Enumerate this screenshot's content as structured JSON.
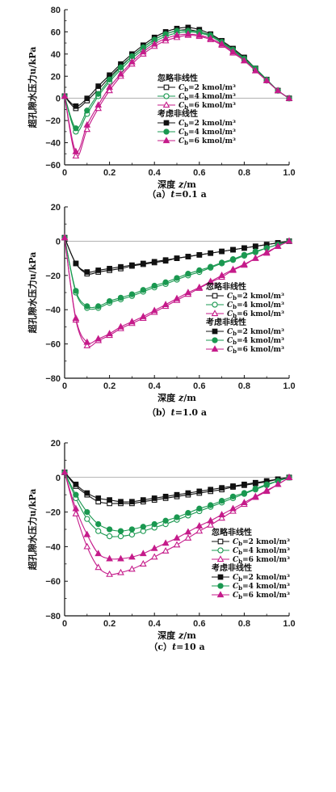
{
  "colors": {
    "c2": "#111111",
    "c4": "#1a9850",
    "c6": "#c51b8a"
  },
  "legend": {
    "group_ignore": "忽略非线性",
    "group_consider": "考虑非线性",
    "c_symbol": "C",
    "c_sub": "b",
    "entries": [
      "=2 kmol/m³",
      "=4 kmol/m³",
      "=6 kmol/m³"
    ]
  },
  "axes": {
    "xlabel_prefix": "深度 ",
    "xlabel_var": "z",
    "xlabel_unit": "/m",
    "ylabel": "超孔隙水压力u/kPa"
  },
  "chart_data": [
    {
      "type": "line",
      "caption": "（a）t=0.1 a",
      "caption_prefix": "（a）",
      "caption_var": "t",
      "caption_rest": "=0.1 a",
      "xlim": [
        0,
        1
      ],
      "ylim": [
        -60,
        80
      ],
      "xticks": [
        "0",
        "0.2",
        "0.4",
        "0.6",
        "0.8",
        "1.0"
      ],
      "yticks": [
        "−60",
        "−40",
        "−20",
        "0",
        "20",
        "40",
        "60",
        "80"
      ],
      "x": [
        0,
        0.05,
        0.1,
        0.15,
        0.2,
        0.25,
        0.3,
        0.35,
        0.4,
        0.45,
        0.5,
        0.55,
        0.6,
        0.65,
        0.7,
        0.75,
        0.8,
        0.85,
        0.9,
        0.95,
        1.0
      ],
      "series": [
        {
          "name": "=2 kmol/m³",
          "group": "ignore",
          "values": [
            2,
            -9,
            -2,
            8,
            19,
            29,
            38,
            46,
            53,
            58,
            61,
            62,
            60,
            57,
            51,
            44,
            36,
            27,
            17,
            7,
            0
          ]
        },
        {
          "name": "=4 kmol/m³",
          "group": "ignore",
          "values": [
            2,
            -30,
            -14,
            2,
            15,
            26,
            36,
            44,
            51,
            56,
            59,
            60,
            59,
            56,
            50,
            43,
            35,
            26,
            16,
            7,
            0
          ]
        },
        {
          "name": "=6 kmol/m³",
          "group": "ignore",
          "values": [
            2,
            -52,
            -28,
            -9,
            7,
            20,
            31,
            40,
            47,
            52,
            55,
            57,
            56,
            53,
            48,
            41,
            34,
            25,
            16,
            7,
            0
          ]
        },
        {
          "name": "=2 kmol/m³",
          "group": "consider",
          "values": [
            2,
            -7,
            0,
            11,
            21,
            31,
            40,
            48,
            55,
            60,
            63,
            64,
            62,
            58,
            52,
            45,
            37,
            27,
            17,
            7,
            0
          ]
        },
        {
          "name": "=4 kmol/m³",
          "group": "consider",
          "values": [
            2,
            -27,
            -11,
            4,
            17,
            28,
            38,
            46,
            53,
            58,
            61,
            61,
            60,
            57,
            51,
            44,
            36,
            27,
            17,
            7,
            0
          ]
        },
        {
          "name": "=6 kmol/m³",
          "group": "consider",
          "values": [
            2,
            -48,
            -24,
            -6,
            10,
            22,
            33,
            42,
            49,
            54,
            57,
            58,
            57,
            54,
            49,
            42,
            34,
            25,
            16,
            7,
            0
          ]
        }
      ]
    },
    {
      "type": "line",
      "caption": "（b）t=1.0 a",
      "caption_prefix": "（b）",
      "caption_var": "t",
      "caption_rest": "=1.0 a",
      "xlim": [
        0,
        1
      ],
      "ylim": [
        -80,
        20
      ],
      "xticks": [
        "0",
        "0.2",
        "0.4",
        "0.6",
        "0.8",
        "1.0"
      ],
      "yticks": [
        "−80",
        "−60",
        "−40",
        "−20",
        "0",
        "20"
      ],
      "x": [
        0,
        0.05,
        0.1,
        0.15,
        0.2,
        0.25,
        0.3,
        0.35,
        0.4,
        0.45,
        0.5,
        0.55,
        0.6,
        0.65,
        0.7,
        0.75,
        0.8,
        0.85,
        0.9,
        0.95,
        1.0
      ],
      "series": [
        {
          "name": "=2 kmol/m³",
          "group": "ignore",
          "values": [
            2,
            -13,
            -19,
            -18,
            -17,
            -16,
            -14.5,
            -13.5,
            -12.5,
            -11.5,
            -10,
            -9,
            -8,
            -7,
            -6,
            -5,
            -4,
            -3,
            -2,
            -1,
            0
          ]
        },
        {
          "name": "=4 kmol/m³",
          "group": "ignore",
          "values": [
            2,
            -30,
            -39,
            -39,
            -36,
            -34,
            -32,
            -29.5,
            -27,
            -25,
            -22.5,
            -20,
            -18,
            -15.5,
            -13,
            -11,
            -8.5,
            -6.5,
            -4,
            -2,
            0
          ]
        },
        {
          "name": "=6 kmol/m³",
          "group": "ignore",
          "values": [
            2,
            -46,
            -61,
            -58,
            -55,
            -51,
            -48,
            -45,
            -41.5,
            -38,
            -34.5,
            -31,
            -27.5,
            -24,
            -21,
            -17,
            -14,
            -10,
            -7,
            -3,
            0
          ]
        },
        {
          "name": "=2 kmol/m³",
          "group": "consider",
          "values": [
            2,
            -13,
            -18,
            -17,
            -16,
            -15,
            -14,
            -13,
            -12,
            -11,
            -10,
            -9,
            -8,
            -7,
            -6,
            -5,
            -4,
            -3,
            -2,
            -1,
            0
          ]
        },
        {
          "name": "=4 kmol/m³",
          "group": "consider",
          "values": [
            2,
            -29,
            -38,
            -38,
            -35,
            -33,
            -31,
            -28.5,
            -26,
            -24,
            -21.5,
            -19,
            -17,
            -15,
            -12.5,
            -10.5,
            -8,
            -6,
            -4,
            -2,
            0
          ]
        },
        {
          "name": "=6 kmol/m³",
          "group": "consider",
          "values": [
            2,
            -45,
            -59,
            -57,
            -54,
            -50,
            -47,
            -44,
            -40.5,
            -37,
            -33.5,
            -30,
            -27,
            -23.5,
            -20,
            -16.5,
            -13.5,
            -10,
            -6.5,
            -3,
            0
          ]
        }
      ]
    },
    {
      "type": "line",
      "caption": "（c）t=10 a",
      "caption_prefix": "（c）",
      "caption_var": "t",
      "caption_rest": "=10 a",
      "xlim": [
        0,
        1
      ],
      "ylim": [
        -80,
        20
      ],
      "xticks": [
        "0",
        "0.2",
        "0.4",
        "0.6",
        "0.8",
        "1.0"
      ],
      "yticks": [
        "−80",
        "−60",
        "−40",
        "−20",
        "0",
        "20"
      ],
      "x": [
        0,
        0.05,
        0.1,
        0.15,
        0.2,
        0.25,
        0.3,
        0.35,
        0.4,
        0.45,
        0.5,
        0.55,
        0.6,
        0.65,
        0.7,
        0.75,
        0.8,
        0.85,
        0.9,
        0.95,
        1.0
      ],
      "series": [
        {
          "name": "=2 kmol/m³",
          "group": "ignore",
          "values": [
            3,
            -5,
            -10,
            -14,
            -15,
            -15,
            -15,
            -14,
            -13,
            -12,
            -11,
            -10,
            -9,
            -8,
            -7,
            -5.5,
            -4.5,
            -3.5,
            -2.5,
            -1,
            0
          ]
        },
        {
          "name": "=4 kmol/m³",
          "group": "ignore",
          "values": [
            3,
            -12,
            -24,
            -31,
            -34,
            -34,
            -33,
            -31,
            -29,
            -27,
            -24.5,
            -22,
            -19.5,
            -17,
            -14.5,
            -12,
            -9.5,
            -7,
            -4.5,
            -2,
            0
          ]
        },
        {
          "name": "=6 kmol/m³",
          "group": "ignore",
          "values": [
            3,
            -21,
            -40,
            -52,
            -56,
            -55,
            -53,
            -50,
            -46,
            -42.5,
            -39,
            -35,
            -31,
            -27.5,
            -23.5,
            -19.5,
            -15.5,
            -11.5,
            -8,
            -4,
            0
          ]
        },
        {
          "name": "=2 kmol/m³",
          "group": "consider",
          "values": [
            3,
            -4,
            -9,
            -12,
            -13,
            -14,
            -14,
            -13,
            -12,
            -11,
            -10,
            -9,
            -8,
            -7,
            -6,
            -5,
            -4,
            -3,
            -2,
            -1,
            0
          ]
        },
        {
          "name": "=4 kmol/m³",
          "group": "consider",
          "values": [
            3,
            -10,
            -20,
            -27,
            -30,
            -31,
            -30,
            -28.5,
            -27,
            -25,
            -23,
            -20.5,
            -18,
            -16,
            -13.5,
            -11,
            -9,
            -6.5,
            -4,
            -2,
            0
          ]
        },
        {
          "name": "=6 kmol/m³",
          "group": "consider",
          "values": [
            3,
            -18,
            -33,
            -44,
            -47,
            -47,
            -46,
            -44,
            -41,
            -38,
            -35,
            -31.5,
            -28,
            -25,
            -21.5,
            -18,
            -14.5,
            -11,
            -7.5,
            -4,
            0
          ]
        }
      ]
    }
  ]
}
